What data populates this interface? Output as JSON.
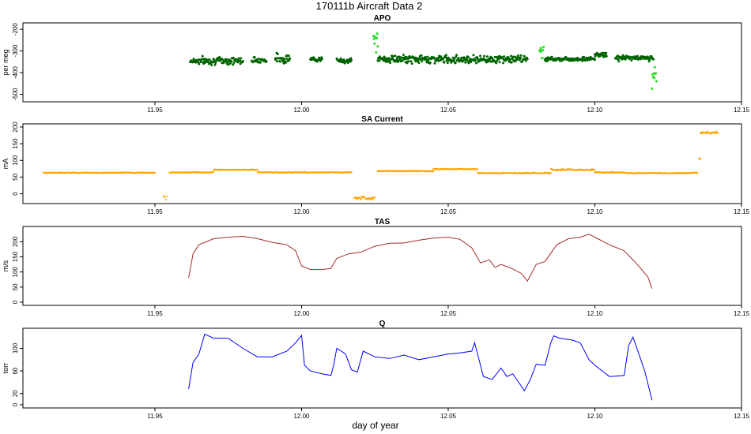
{
  "figure": {
    "title": "170111b   Aircraft Data 2",
    "xlabel": "day of year"
  },
  "chart_data": [
    {
      "type": "scatter",
      "title": "APO",
      "xlabel": "",
      "ylabel": "per meg",
      "xlim": [
        11.905,
        12.15
      ],
      "ylim": [
        -520,
        -185
      ],
      "xticks": [
        "11.95",
        "12.00",
        "12.05",
        "12.10",
        "12.15"
      ],
      "yticks": [
        "-500",
        "-400",
        "-300",
        "-200"
      ],
      "grid": false,
      "series": [
        {
          "color": "#006400",
          "segments": [
            {
              "x0": 11.962,
              "x1": 11.98,
              "mean": -345,
              "noise": 14
            },
            {
              "x0": 11.983,
              "x1": 11.988,
              "mean": -342,
              "noise": 10
            },
            {
              "x0": 11.991,
              "x1": 11.996,
              "mean": -335,
              "noise": 18
            },
            {
              "x0": 12.003,
              "x1": 12.007,
              "mean": -338,
              "noise": 8
            },
            {
              "x0": 12.012,
              "x1": 12.017,
              "mean": -345,
              "noise": 9
            },
            {
              "x0": 12.026,
              "x1": 12.077,
              "mean": -338,
              "noise": 14
            },
            {
              "x0": 12.083,
              "x1": 12.1,
              "mean": -337,
              "noise": 8
            },
            {
              "x0": 12.1,
              "x1": 12.104,
              "mean": -318,
              "noise": 8
            },
            {
              "x0": 12.107,
              "x1": 12.12,
              "mean": -332,
              "noise": 10
            }
          ]
        },
        {
          "color": "#22dd22",
          "segments": [
            {
              "x0": 12.0245,
              "x1": 12.026,
              "mean": -260,
              "noise": 40
            },
            {
              "x0": 12.0812,
              "x1": 12.0825,
              "mean": -300,
              "noise": 30
            },
            {
              "x0": 12.1195,
              "x1": 12.121,
              "mean": -430,
              "noise": 70
            }
          ]
        }
      ]
    },
    {
      "type": "scatter",
      "title": "SA Current",
      "xlabel": "",
      "ylabel": "mA",
      "xlim": [
        11.905,
        12.15
      ],
      "ylim": [
        -20,
        200
      ],
      "xticks": [
        "11.95",
        "12.00",
        "12.05",
        "12.10",
        "12.15"
      ],
      "yticks": [
        "0",
        "50",
        "100",
        "150",
        "200"
      ],
      "grid": false,
      "series": [
        {
          "color": "#ffa500",
          "segments": [
            {
              "x0": 11.912,
              "x1": 11.95,
              "mean": 63,
              "noise": 1
            },
            {
              "x0": 11.953,
              "x1": 11.954,
              "mean": -10,
              "noise": 8
            },
            {
              "x0": 11.955,
              "x1": 11.97,
              "mean": 64,
              "noise": 1
            },
            {
              "x0": 11.97,
              "x1": 11.985,
              "mean": 72,
              "noise": 1
            },
            {
              "x0": 11.985,
              "x1": 12.017,
              "mean": 64,
              "noise": 1
            },
            {
              "x0": 12.018,
              "x1": 12.025,
              "mean": -12,
              "noise": 4
            },
            {
              "x0": 12.026,
              "x1": 12.045,
              "mean": 68,
              "noise": 1
            },
            {
              "x0": 12.045,
              "x1": 12.06,
              "mean": 74,
              "noise": 1
            },
            {
              "x0": 12.06,
              "x1": 12.085,
              "mean": 62,
              "noise": 1
            },
            {
              "x0": 12.085,
              "x1": 12.1,
              "mean": 72,
              "noise": 2
            },
            {
              "x0": 12.1,
              "x1": 12.11,
              "mean": 64,
              "noise": 1
            },
            {
              "x0": 12.11,
              "x1": 12.133,
              "mean": 62,
              "noise": 1
            },
            {
              "x0": 12.133,
              "x1": 12.135,
              "mean": 63,
              "noise": 1
            },
            {
              "x0": 12.1355,
              "x1": 12.136,
              "mean": 105,
              "noise": 3
            },
            {
              "x0": 12.136,
              "x1": 12.142,
              "mean": 183,
              "noise": 3
            }
          ]
        }
      ]
    },
    {
      "type": "line",
      "title": "TAS",
      "xlabel": "",
      "ylabel": "m/s",
      "xlim": [
        11.905,
        12.15
      ],
      "ylim": [
        0,
        240
      ],
      "xticks": [
        "11.95",
        "12.00",
        "12.05",
        "12.10",
        "12.15"
      ],
      "yticks": [
        "0",
        "50",
        "100",
        "150",
        "200"
      ],
      "grid": false,
      "series": [
        {
          "color": "#a52a2a",
          "x": [
            11.9615,
            11.963,
            11.965,
            11.97,
            11.975,
            11.98,
            11.985,
            11.99,
            11.995,
            11.998,
            12.0,
            12.003,
            12.007,
            12.01,
            12.012,
            12.016,
            12.02,
            12.025,
            12.03,
            12.035,
            12.04,
            12.045,
            12.05,
            12.054,
            12.058,
            12.061,
            12.064,
            12.066,
            12.068,
            12.072,
            12.075,
            12.077,
            12.08,
            12.083,
            12.087,
            12.091,
            12.095,
            12.098,
            12.101,
            12.105,
            12.11,
            12.114,
            12.118,
            12.1195
          ],
          "y": [
            80,
            160,
            190,
            210,
            215,
            218,
            210,
            198,
            190,
            170,
            120,
            108,
            108,
            112,
            145,
            160,
            165,
            185,
            195,
            196,
            205,
            212,
            215,
            208,
            180,
            130,
            140,
            115,
            125,
            110,
            95,
            70,
            125,
            135,
            190,
            210,
            215,
            225,
            210,
            190,
            170,
            130,
            85,
            45
          ]
        }
      ]
    },
    {
      "type": "line",
      "title": "Q",
      "xlabel": "",
      "ylabel": "torr",
      "xlim": [
        11.905,
        12.15
      ],
      "ylim": [
        0,
        130
      ],
      "xticks": [
        "11.95",
        "12.00",
        "12.05",
        "12.10",
        "12.15"
      ],
      "yticks": [
        "0",
        "20",
        "60",
        "100"
      ],
      "grid": false,
      "series": [
        {
          "color": "#0000ff",
          "x": [
            11.9615,
            11.963,
            11.965,
            11.967,
            11.97,
            11.975,
            11.98,
            11.985,
            11.99,
            11.995,
            11.998,
            12.0,
            12.001,
            12.003,
            12.007,
            12.01,
            12.011,
            12.012,
            12.015,
            12.017,
            12.019,
            12.021,
            12.025,
            12.03,
            12.035,
            12.04,
            12.045,
            12.05,
            12.054,
            12.058,
            12.059,
            12.062,
            12.065,
            12.068,
            12.07,
            12.072,
            12.074,
            12.076,
            12.078,
            12.08,
            12.083,
            12.085,
            12.086,
            12.088,
            12.092,
            12.095,
            12.098,
            12.1,
            12.105,
            12.11,
            12.1115,
            12.113,
            12.117,
            12.1195
          ],
          "y": [
            28,
            75,
            90,
            125,
            118,
            118,
            100,
            85,
            85,
            95,
            110,
            123,
            70,
            60,
            55,
            52,
            72,
            100,
            90,
            62,
            58,
            95,
            85,
            82,
            88,
            80,
            85,
            90,
            92,
            95,
            110,
            50,
            45,
            65,
            50,
            55,
            40,
            25,
            45,
            72,
            70,
            110,
            122,
            118,
            115,
            110,
            80,
            70,
            50,
            52,
            105,
            120,
            60,
            8
          ]
        }
      ]
    }
  ]
}
